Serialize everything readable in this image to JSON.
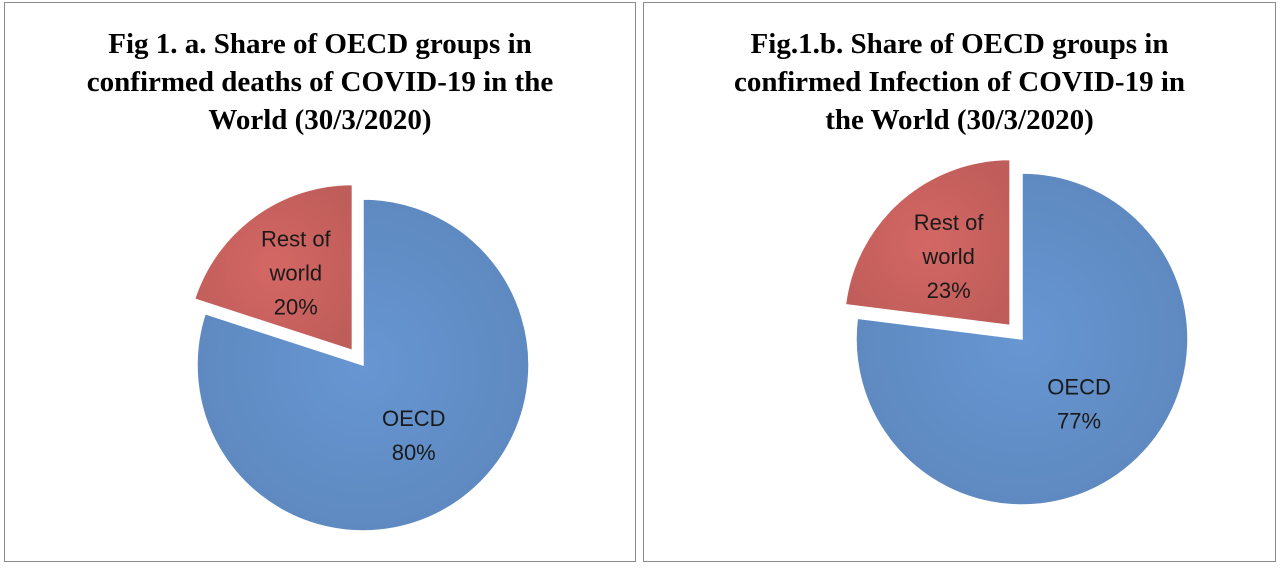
{
  "chart_data": [
    {
      "type": "pie",
      "title": "Fig 1. a. Share of OECD groups in confirmed deaths of COVID-19 in the World (30/3/2020)",
      "slices": [
        {
          "label": [
            "OECD",
            "80%"
          ],
          "category": "OECD",
          "value": 80,
          "color": "#6796d2",
          "exploded": false
        },
        {
          "label": [
            "Rest of",
            "world",
            "20%"
          ],
          "category": "Rest of world",
          "value": 20,
          "color": "#d46764",
          "exploded": true
        }
      ],
      "legend": "none"
    },
    {
      "type": "pie",
      "title": "Fig.1.b. Share of OECD groups in confirmed Infection of COVID-19 in the World (30/3/2020)",
      "slices": [
        {
          "label": [
            "OECD",
            "77%"
          ],
          "category": "OECD",
          "value": 77,
          "color": "#6796d2",
          "exploded": false
        },
        {
          "label": [
            "Rest of",
            "world",
            "23%"
          ],
          "category": "Rest of world",
          "value": 23,
          "color": "#d46764",
          "exploded": true
        }
      ],
      "legend": "none"
    }
  ]
}
